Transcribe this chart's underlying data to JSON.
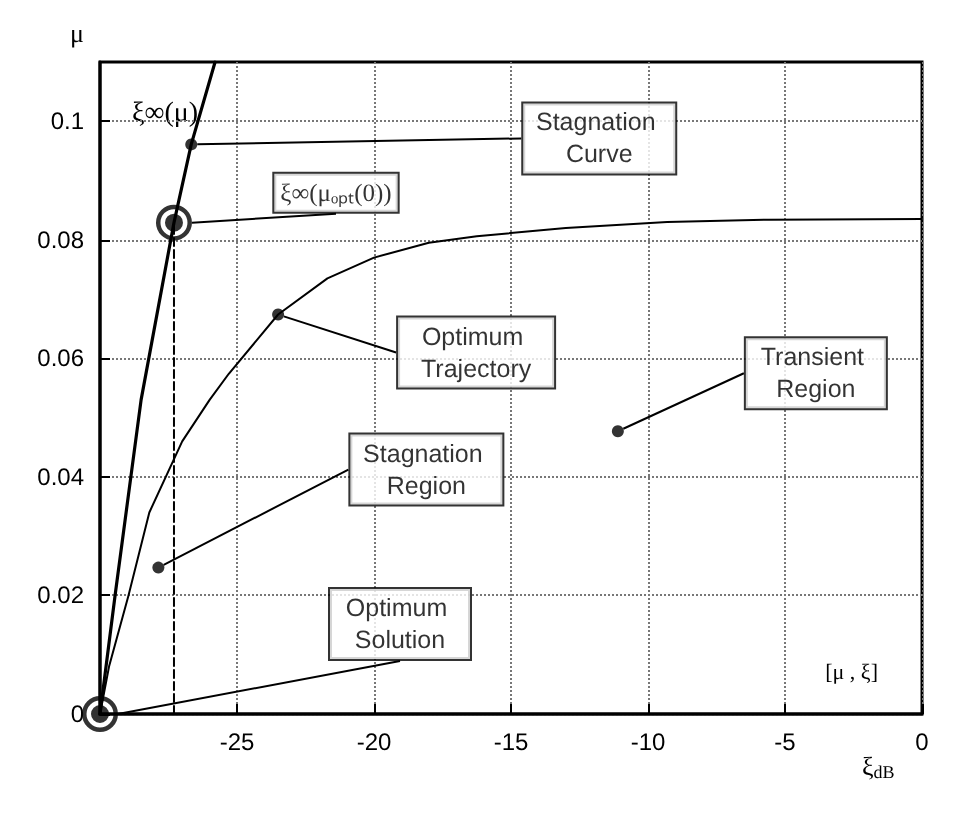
{
  "chart_data": {
    "type": "line",
    "xlabel": "ξ$_{dB}$",
    "ylabel": "μ",
    "xlim": [
      -30,
      0
    ],
    "ylim": [
      0,
      0.11
    ],
    "xticks": [
      -25,
      -20,
      -15,
      -10,
      -5,
      0
    ],
    "yticks": [
      0,
      0.02,
      0.04,
      0.06,
      0.08,
      0.1
    ],
    "grid": true,
    "marker": "none",
    "line_style": "solid",
    "series": [
      {
        "color": "#000000",
        "x": [
          -30,
          -29.45,
          -28.5,
          -27.3,
          -26.67,
          -25.8
        ],
        "values": [
          0,
          0.02,
          0.053,
          0.0829,
          0.0961,
          0.11
        ]
      },
      {
        "color": "#000000",
        "x": [
          -30,
          -29.67,
          -28.96,
          -28.2,
          -27,
          -26,
          -25.3,
          -23.5,
          -21.7,
          -20,
          -18,
          -16.25,
          -13,
          -9.3,
          -5.6,
          0
        ],
        "values": [
          0,
          0.008,
          0.02,
          0.034,
          0.046,
          0.053,
          0.0574,
          0.0674,
          0.0735,
          0.077,
          0.0795,
          0.0806,
          0.082,
          0.083,
          0.0834,
          0.0835
        ]
      },
      {
        "color": "#000000",
        "line_style": "dashed",
        "x": [
          -27.3,
          -27.3
        ],
        "values": [
          0,
          0.0829
        ]
      }
    ],
    "annotations": [
      {
        "text": "Stagnation Curve",
        "x": -26.67,
        "y": 0.0961
      },
      {
        "text": "ξ∞(μₒₚₜ(0))",
        "x": -27.3,
        "y": 0.0829
      },
      {
        "text": "Optimum Trajectory",
        "x": -23.5,
        "y": 0.0674
      },
      {
        "text": "Stagnation Region",
        "x": -27.87,
        "y": 0.0247
      },
      {
        "text": "Optimum Solution",
        "x": -30,
        "y": 0
      },
      {
        "text": "Transient Region",
        "x": -11.1,
        "y": 0.0477
      },
      "ξ∞(μ)",
      "[μ , ξ]"
    ]
  }
}
